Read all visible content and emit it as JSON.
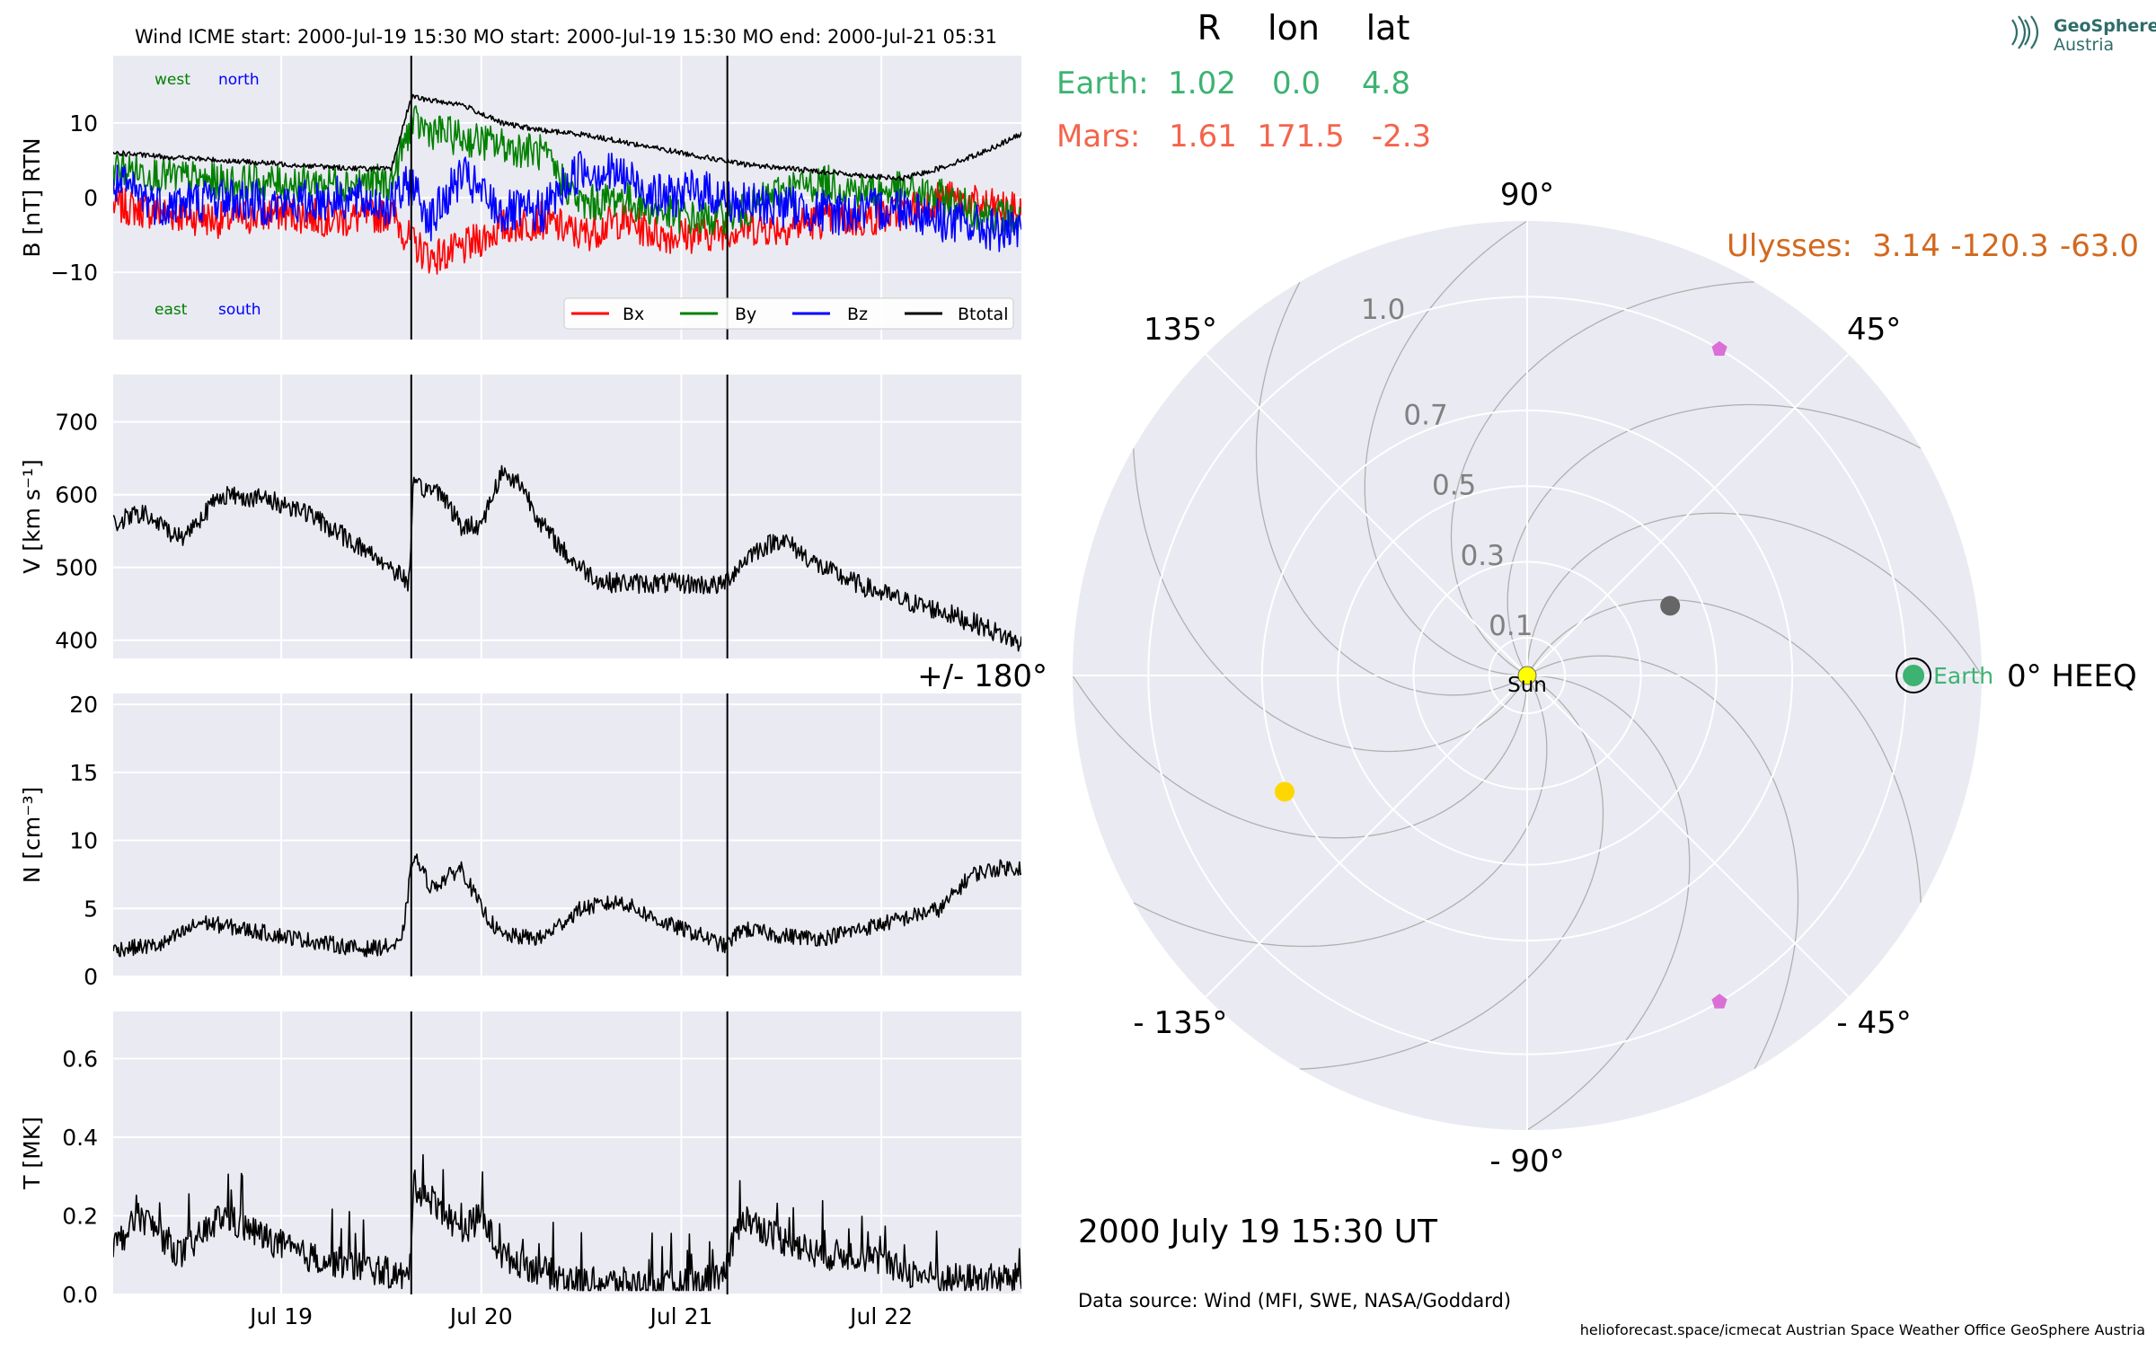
{
  "header": {
    "title": "Wind    ICME start: 2000-Jul-19 15:30   MO start: 2000-Jul-19 15:30   MO end: 2000-Jul-21 05:31"
  },
  "logo": {
    "line1": "GeoSphere",
    "line2": "Austria"
  },
  "positions": {
    "headers": [
      "R",
      "lon",
      "lat"
    ],
    "earth": {
      "label": "Earth:",
      "R": "1.02",
      "lon": "0.0",
      "lat": "4.8",
      "color": "#3cb371"
    },
    "mars": {
      "label": "Mars:",
      "R": "1.61",
      "lon": "171.5",
      "lat": "-2.3",
      "color": "#f4644c"
    },
    "ulysses": {
      "label": "Ulysses:",
      "R": "3.14",
      "lon": "-120.3",
      "lat": "-63.0",
      "color": "#d2691e"
    }
  },
  "annotations": {
    "west": "west",
    "north": "north",
    "east": "east",
    "south": "south",
    "datetime": "2000 July 19  15:30 UT",
    "source": "Data source: Wind (MFI, SWE, NASA/Goddard)",
    "footer": "helioforecast.space/icmecat   Austrian Space Weather Office   GeoSphere Austria"
  },
  "colors": {
    "bx": "#ff0000",
    "by": "#008000",
    "bz": "#0000ff",
    "btotal": "#000000",
    "panel_bg": "#eaeaf2",
    "west_east": "#008000",
    "north_south": "#0000ff"
  },
  "chart_data": [
    {
      "type": "line",
      "ylabel": "B [nT] RTN",
      "ylim": [
        -19,
        19
      ],
      "yticks": [
        "10",
        "0",
        "−10"
      ],
      "yticks_values": [
        10,
        0,
        -10
      ],
      "x_ticks": [
        "Jul 19",
        "Jul 20",
        "Jul 21",
        "Jul 22"
      ],
      "x_ticks_values": [
        1.0,
        2.0,
        3.0,
        4.0
      ],
      "xlim": [
        0.16,
        4.7
      ],
      "event_lines": [
        1.65,
        3.23
      ],
      "series": [
        {
          "name": "Bx",
          "x": [
            0.16,
            0.4,
            0.7,
            1.0,
            1.3,
            1.55,
            1.65,
            1.75,
            1.9,
            2.1,
            2.3,
            2.5,
            2.7,
            2.9,
            3.1,
            3.3,
            3.5,
            3.7,
            3.9,
            4.1,
            4.3,
            4.5,
            4.7
          ],
          "y": [
            -1,
            -2,
            -3,
            -2,
            -3,
            -2,
            -6,
            -8,
            -7,
            -4,
            -3,
            -5,
            -3,
            -5,
            -5,
            -4,
            -4,
            -3,
            -3,
            -2,
            0,
            -1,
            -2
          ]
        },
        {
          "name": "By",
          "x": [
            0.16,
            0.4,
            0.7,
            1.0,
            1.3,
            1.55,
            1.65,
            1.75,
            1.9,
            2.1,
            2.3,
            2.5,
            2.7,
            2.9,
            3.1,
            3.3,
            3.5,
            3.7,
            3.9,
            4.1,
            4.3,
            4.5,
            4.7
          ],
          "y": [
            4,
            3,
            2,
            2,
            2,
            2,
            10,
            9,
            8,
            7,
            6,
            -1,
            0,
            -2,
            -3,
            -2,
            1,
            2,
            1,
            1,
            0,
            -2,
            -3
          ]
        },
        {
          "name": "Bz",
          "x": [
            0.16,
            0.4,
            0.7,
            1.0,
            1.3,
            1.55,
            1.65,
            1.75,
            1.9,
            2.1,
            2.3,
            2.5,
            2.7,
            2.9,
            3.1,
            3.3,
            3.5,
            3.7,
            3.9,
            4.1,
            4.3,
            4.5,
            4.7
          ],
          "y": [
            2,
            -1,
            0,
            -1,
            0,
            -1,
            2,
            -3,
            3,
            -2,
            -2,
            4,
            3,
            0,
            1,
            -1,
            -1,
            -2,
            -2,
            -1,
            -3,
            -4,
            -5
          ]
        },
        {
          "name": "Btotal",
          "x": [
            0.16,
            0.4,
            0.7,
            1.0,
            1.3,
            1.55,
            1.65,
            1.75,
            1.9,
            2.1,
            2.3,
            2.5,
            2.7,
            2.9,
            3.1,
            3.3,
            3.5,
            3.7,
            3.9,
            4.1,
            4.3,
            4.5,
            4.7
          ],
          "y": [
            6,
            5.5,
            5,
            4.5,
            4,
            3.8,
            13.5,
            13,
            12.5,
            10,
            9,
            8.5,
            7.5,
            6.5,
            5.5,
            4.5,
            4,
            3.5,
            3,
            2.5,
            4,
            6,
            8.5
          ]
        }
      ]
    },
    {
      "type": "line",
      "ylabel": "V [km s⁻¹]",
      "ylim": [
        375,
        765
      ],
      "yticks": [
        "700",
        "600",
        "500",
        "400"
      ],
      "yticks_values": [
        700,
        600,
        500,
        400
      ],
      "xlim": [
        0.16,
        4.7
      ],
      "event_lines": [
        1.65,
        3.23
      ],
      "series": [
        {
          "name": "V",
          "x": [
            0.16,
            0.3,
            0.5,
            0.7,
            0.9,
            1.1,
            1.3,
            1.5,
            1.64,
            1.66,
            1.8,
            1.9,
            2.0,
            2.1,
            2.2,
            2.3,
            2.45,
            2.6,
            2.8,
            3.0,
            3.2,
            3.35,
            3.5,
            3.7,
            3.9,
            4.1,
            4.3,
            4.5,
            4.7
          ],
          "y": [
            560,
            575,
            540,
            600,
            595,
            580,
            545,
            510,
            480,
            610,
            605,
            555,
            560,
            630,
            615,
            560,
            510,
            480,
            478,
            478,
            475,
            520,
            540,
            500,
            475,
            455,
            440,
            420,
            395
          ]
        }
      ]
    },
    {
      "type": "line",
      "ylabel": "N [cm⁻³]",
      "ylim": [
        0,
        20.8
      ],
      "yticks": [
        "20",
        "15",
        "10",
        "5",
        "0"
      ],
      "yticks_values": [
        20,
        15,
        10,
        5,
        0
      ],
      "xlim": [
        0.16,
        4.7
      ],
      "event_lines": [
        1.65,
        3.23
      ],
      "series": [
        {
          "name": "N",
          "x": [
            0.16,
            0.4,
            0.6,
            0.8,
            1.0,
            1.2,
            1.4,
            1.6,
            1.66,
            1.75,
            1.9,
            2.0,
            2.1,
            2.3,
            2.5,
            2.7,
            2.9,
            3.1,
            3.22,
            3.3,
            3.5,
            3.7,
            3.9,
            4.1,
            4.3,
            4.45,
            4.6,
            4.7
          ],
          "y": [
            2,
            2.3,
            4,
            3.5,
            3,
            2.5,
            2,
            2.3,
            9,
            6.5,
            8,
            5,
            3,
            2.8,
            5,
            5.5,
            4,
            3,
            2.2,
            3.5,
            3,
            2.8,
            3.5,
            4.2,
            5,
            7.5,
            8,
            8
          ]
        }
      ]
    },
    {
      "type": "line",
      "ylabel": "T [MK]",
      "ylim": [
        0,
        0.72
      ],
      "yticks": [
        "0.6",
        "0.4",
        "0.2",
        "0.0"
      ],
      "yticks_values": [
        0.6,
        0.4,
        0.2,
        0.0
      ],
      "x_ticks": [
        "Jul 19",
        "Jul 20",
        "Jul 21",
        "Jul 22"
      ],
      "x_ticks_values": [
        1.0,
        2.0,
        3.0,
        4.0
      ],
      "xlim": [
        0.16,
        4.7
      ],
      "event_lines": [
        1.65,
        3.23
      ],
      "series": [
        {
          "name": "T",
          "x": [
            0.16,
            0.3,
            0.5,
            0.7,
            0.9,
            1.1,
            1.3,
            1.5,
            1.64,
            1.66,
            1.8,
            1.9,
            2.0,
            2.1,
            2.3,
            2.5,
            2.7,
            2.9,
            3.1,
            3.22,
            3.3,
            3.5,
            3.7,
            3.9,
            4.1,
            4.3,
            4.5,
            4.7
          ],
          "y": [
            0.12,
            0.2,
            0.1,
            0.2,
            0.15,
            0.1,
            0.08,
            0.06,
            0.04,
            0.28,
            0.22,
            0.16,
            0.2,
            0.1,
            0.06,
            0.03,
            0.03,
            0.02,
            0.03,
            0.06,
            0.2,
            0.14,
            0.1,
            0.1,
            0.06,
            0.04,
            0.04,
            0.04
          ]
        }
      ]
    },
    {
      "type": "scatter",
      "subtype": "polar",
      "r_ticks": [
        "1.0",
        "0.7",
        "0.5",
        "0.3",
        "0.1"
      ],
      "r_ticks_values": [
        1.0,
        0.7,
        0.5,
        0.3,
        0.1
      ],
      "rlim": [
        0,
        1.2
      ],
      "angle_labels": [
        {
          "angle": 0,
          "label": "0° HEEQ"
        },
        {
          "angle": 45,
          "label": "45°"
        },
        {
          "angle": 90,
          "label": "90°"
        },
        {
          "angle": 135,
          "label": "135°"
        },
        {
          "angle": 180,
          "label": "+/- 180°"
        },
        {
          "angle": -135,
          "label": "- 135°"
        },
        {
          "angle": -90,
          "label": "- 90°"
        },
        {
          "angle": -45,
          "label": "- 45°"
        }
      ],
      "bodies": [
        {
          "name": "Sun",
          "r": 0.0,
          "lon": 0.0,
          "color": "#ffff00",
          "marker": "circle",
          "label": "Sun"
        },
        {
          "name": "Earth",
          "r": 1.02,
          "lon": 0.0,
          "color": "#3cb371",
          "marker": "circle-ring",
          "label": "Earth"
        },
        {
          "name": "Mars",
          "r": 1.61,
          "lon": 171.5,
          "color": "#ffd700",
          "marker": "circle",
          "plot_r": 0.71,
          "plot_lon": 205.6
        },
        {
          "name": "Grey",
          "r": 0.42,
          "lon": 26.0,
          "color": "#666666",
          "marker": "circle"
        },
        {
          "name": "Pentagon1",
          "r": 1.0,
          "lon": 59.5,
          "color": "#da70d6",
          "marker": "pentagon"
        },
        {
          "name": "Pentagon2",
          "r": 1.0,
          "lon": -59.5,
          "color": "#da70d6",
          "marker": "pentagon"
        }
      ]
    }
  ]
}
